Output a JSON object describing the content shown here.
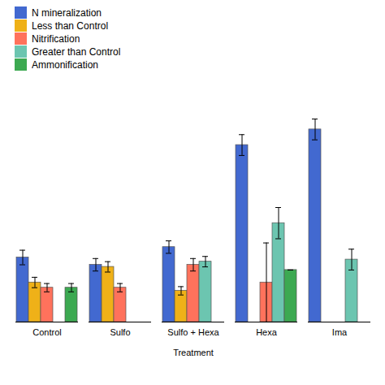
{
  "chart_data": {
    "type": "bar",
    "xlabel": "Treatment",
    "categories": [
      "Control",
      "Sulfo",
      "Sulfo + Hexa",
      "Hexa",
      "Ima"
    ],
    "series": [
      {
        "name": "N mineralization",
        "values": [
          62,
          55,
          72,
          170,
          185
        ],
        "errors": [
          7,
          6,
          6,
          10,
          10
        ]
      },
      {
        "name": "Less than Control",
        "values": [
          38,
          53,
          30,
          null,
          null
        ],
        "errors": [
          5,
          5,
          4,
          null,
          null
        ]
      },
      {
        "name": "Nitrification",
        "values": [
          33,
          33,
          55,
          38,
          null
        ],
        "errors": [
          4,
          4,
          6,
          38,
          null
        ]
      },
      {
        "name": "Greater than Control",
        "values": [
          null,
          null,
          58,
          95,
          60
        ],
        "errors": [
          null,
          null,
          5,
          15,
          10
        ]
      },
      {
        "name": "Ammonification",
        "values": [
          33,
          null,
          null,
          50,
          null
        ],
        "errors": [
          4,
          null,
          null,
          0,
          null
        ]
      }
    ],
    "ylim": [
      0,
      220
    ],
    "tick_labels": "x",
    "legend": "upper left"
  }
}
